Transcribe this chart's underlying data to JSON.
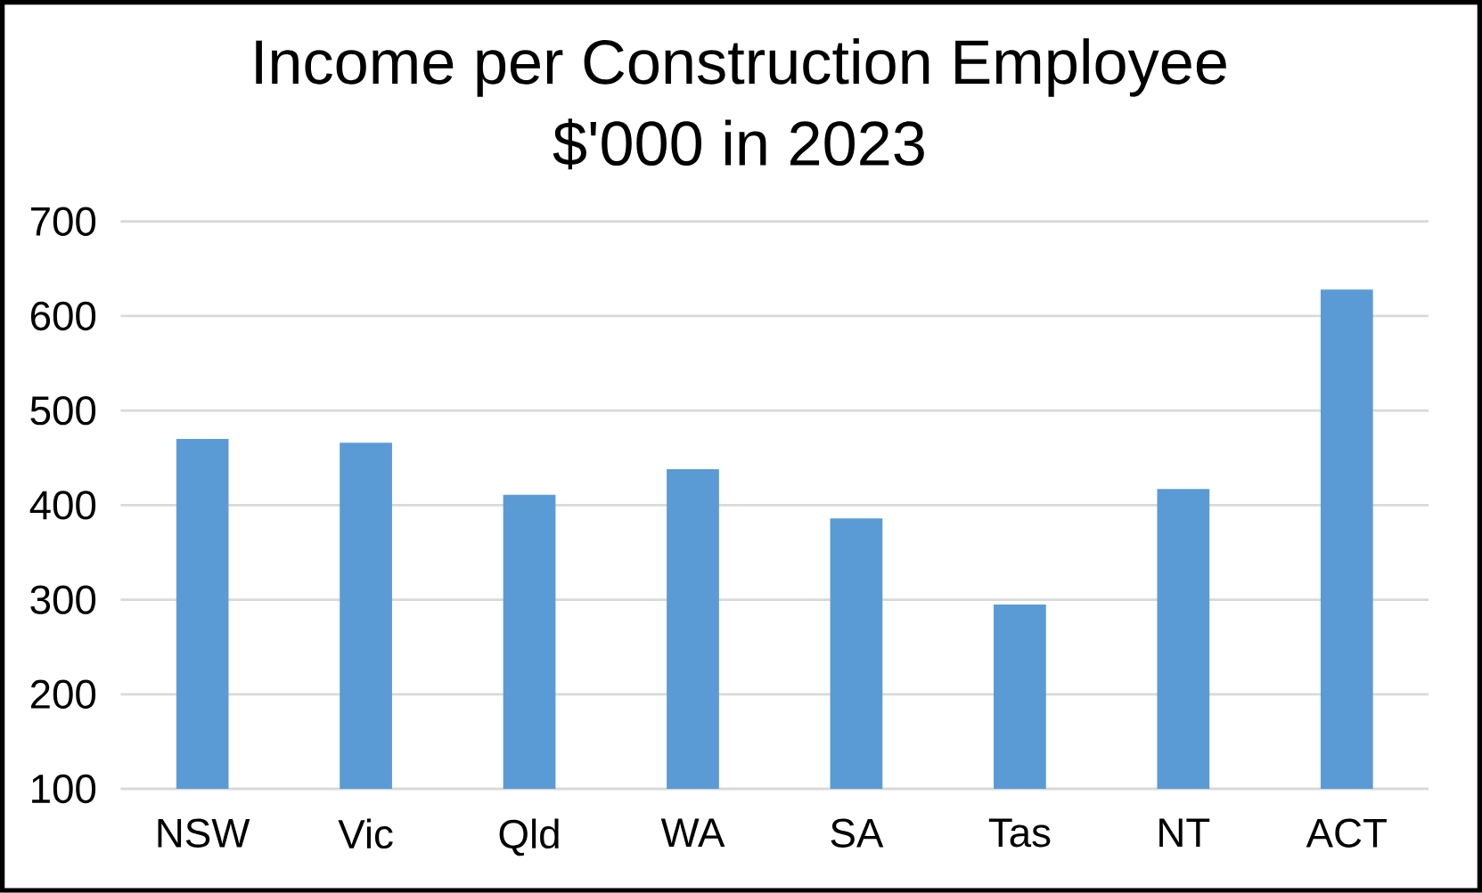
{
  "chart_data": {
    "type": "bar",
    "title": "Income per Construction Employee",
    "subtitle": "$'000 in 2023",
    "categories": [
      "NSW",
      "Vic",
      "Qld",
      "WA",
      "SA",
      "Tas",
      "NT",
      "ACT"
    ],
    "values": [
      470,
      466,
      411,
      438,
      386,
      295,
      417,
      628
    ],
    "color": "#5b9bd5",
    "ylim": [
      100,
      700
    ],
    "yticks": [
      100,
      200,
      300,
      400,
      500,
      600,
      700
    ],
    "grid": "y"
  }
}
